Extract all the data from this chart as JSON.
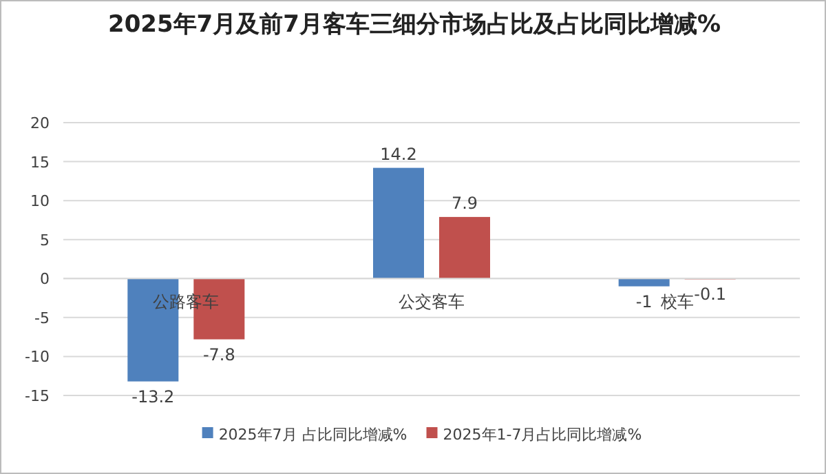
{
  "chart_data": {
    "type": "bar",
    "title": "2025年7月及前7月客车三细分市场占比及占比同比增减%",
    "categories": [
      "公路客车",
      "公交客车",
      "校车"
    ],
    "series": [
      {
        "name": "2025年7月 占比同比增减%",
        "color": "#4f81bd",
        "values": [
          -13.2,
          14.2,
          -1
        ]
      },
      {
        "name": "2025年1-7月占比同比增减%",
        "color": "#c0504d",
        "values": [
          -7.8,
          7.9,
          -0.1
        ]
      }
    ],
    "ylim": [
      -15,
      20
    ],
    "yticks": [
      -15,
      -10,
      -5,
      0,
      5,
      10,
      15,
      20
    ],
    "grid": "y",
    "legend": "bottom",
    "data_labels": true
  }
}
